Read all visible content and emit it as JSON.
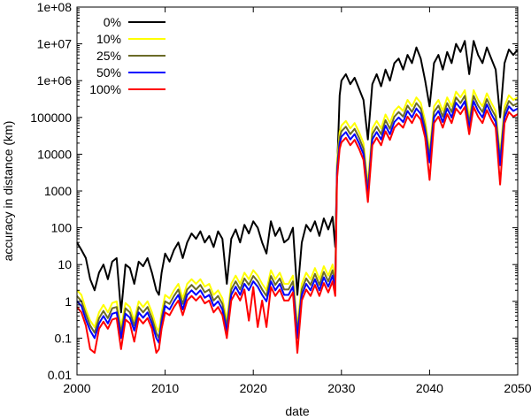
{
  "chart_data": {
    "type": "line",
    "title": "",
    "xlabel": "date",
    "ylabel": "accuracy in distance (km)",
    "xlim": [
      2000,
      2050
    ],
    "ylim": [
      0.01,
      100000000
    ],
    "yscale": "log",
    "xticks": [
      "2000",
      "2010",
      "2020",
      "2030",
      "2040",
      "2050"
    ],
    "yticks": [
      "0.01",
      "0.1",
      "1",
      "10",
      "100",
      "1000",
      "10000",
      "100000",
      "1e+06",
      "1e+07",
      "1e+08"
    ],
    "grid": false,
    "legend_position": "top-left",
    "series": [
      {
        "name": "0%",
        "color": "#000000",
        "x": [
          2000.0,
          2000.5,
          2001.0,
          2001.5,
          2002.0,
          2002.5,
          2003.0,
          2003.5,
          2004.0,
          2004.5,
          2005.0,
          2005.5,
          2006.0,
          2006.5,
          2007.0,
          2007.5,
          2008.0,
          2008.5,
          2009.0,
          2009.3,
          2009.6,
          2010.0,
          2010.5,
          2011.0,
          2011.5,
          2012.0,
          2012.5,
          2013.0,
          2013.5,
          2014.0,
          2014.5,
          2015.0,
          2015.5,
          2016.0,
          2016.5,
          2017.0,
          2017.5,
          2018.0,
          2018.5,
          2019.0,
          2019.5,
          2020.0,
          2020.5,
          2021.0,
          2021.5,
          2022.0,
          2022.5,
          2023.0,
          2023.5,
          2024.0,
          2024.5,
          2025.0,
          2025.5,
          2026.0,
          2026.5,
          2027.0,
          2027.5,
          2028.0,
          2028.5,
          2029.0,
          2029.3,
          2029.5,
          2029.8,
          2030.0,
          2030.5,
          2031.0,
          2031.5,
          2032.0,
          2032.5,
          2033.0,
          2033.5,
          2034.0,
          2034.5,
          2035.0,
          2035.5,
          2036.0,
          2036.5,
          2037.0,
          2037.5,
          2038.0,
          2038.5,
          2039.0,
          2039.5,
          2040.0,
          2040.5,
          2041.0,
          2041.5,
          2042.0,
          2042.5,
          2043.0,
          2043.5,
          2044.0,
          2044.5,
          2045.0,
          2045.5,
          2046.0,
          2046.5,
          2047.0,
          2047.5,
          2048.0,
          2048.5,
          2049.0,
          2049.5,
          2050.0
        ],
        "y": [
          40,
          25,
          15,
          4,
          2,
          6,
          10,
          4,
          12,
          15,
          0.5,
          10,
          8,
          3,
          12,
          9,
          15,
          6,
          2,
          1.5,
          6,
          20,
          12,
          25,
          40,
          15,
          40,
          70,
          50,
          80,
          40,
          60,
          30,
          80,
          50,
          3,
          50,
          90,
          40,
          120,
          70,
          150,
          100,
          40,
          20,
          150,
          60,
          100,
          40,
          50,
          100,
          1.5,
          40,
          120,
          80,
          150,
          60,
          180,
          90,
          200,
          30,
          3000,
          400000,
          1000000,
          1500000,
          800000,
          1200000,
          600000,
          300000,
          25000,
          800000,
          1500000,
          700000,
          2000000,
          1000000,
          3000000,
          4000000,
          2000000,
          5000000,
          3000000,
          8000000,
          4000000,
          1000000,
          200000,
          3000000,
          5000000,
          2000000,
          6000000,
          3000000,
          10000000,
          6000000,
          12000000,
          1500000,
          12000000,
          5000000,
          3000000,
          8000000,
          4000000,
          2000000,
          100000,
          3000000,
          7000000,
          5000000,
          7000000
        ]
      },
      {
        "name": "10%",
        "color": "#ffff00",
        "x": [
          2000.0,
          2000.5,
          2001.0,
          2001.5,
          2002.0,
          2002.5,
          2003.0,
          2003.5,
          2004.0,
          2004.5,
          2005.0,
          2005.5,
          2006.0,
          2006.5,
          2007.0,
          2007.5,
          2008.0,
          2008.5,
          2009.0,
          2009.3,
          2009.6,
          2010.0,
          2010.5,
          2011.0,
          2011.5,
          2012.0,
          2012.5,
          2013.0,
          2013.5,
          2014.0,
          2014.5,
          2015.0,
          2015.5,
          2016.0,
          2016.5,
          2017.0,
          2017.5,
          2018.0,
          2018.5,
          2019.0,
          2019.5,
          2020.0,
          2020.5,
          2021.0,
          2021.5,
          2022.0,
          2022.5,
          2023.0,
          2023.5,
          2024.0,
          2024.5,
          2025.0,
          2025.5,
          2026.0,
          2026.5,
          2027.0,
          2027.5,
          2028.0,
          2028.5,
          2029.0,
          2029.3,
          2029.5,
          2029.8,
          2030.0,
          2030.5,
          2031.0,
          2031.5,
          2032.0,
          2032.5,
          2033.0,
          2033.5,
          2034.0,
          2034.5,
          2035.0,
          2035.5,
          2036.0,
          2036.5,
          2037.0,
          2037.5,
          2038.0,
          2038.5,
          2039.0,
          2039.5,
          2040.0,
          2040.5,
          2041.0,
          2041.5,
          2042.0,
          2042.5,
          2043.0,
          2043.5,
          2044.0,
          2044.5,
          2045.0,
          2045.5,
          2046.0,
          2046.5,
          2047.0,
          2047.5,
          2048.0,
          2048.5,
          2049.0,
          2049.5,
          2050.0
        ],
        "y": [
          2,
          1.5,
          0.6,
          0.3,
          0.2,
          0.5,
          0.8,
          0.5,
          0.9,
          1.0,
          0.2,
          0.9,
          0.7,
          0.3,
          1.0,
          0.7,
          1.0,
          0.5,
          0.2,
          0.15,
          0.5,
          1.5,
          1.2,
          2,
          3,
          1.2,
          3,
          4,
          3,
          4,
          2.5,
          3,
          1.5,
          2,
          1.2,
          0.3,
          3,
          5,
          3,
          6,
          4,
          7,
          5,
          3,
          2,
          7,
          4,
          6,
          3,
          3,
          5,
          0.2,
          3,
          6,
          4,
          8,
          4,
          9,
          5,
          10,
          4,
          6000,
          40000,
          60000,
          80000,
          50000,
          70000,
          40000,
          20000,
          1500,
          50000,
          80000,
          50000,
          120000,
          70000,
          150000,
          200000,
          150000,
          300000,
          200000,
          350000,
          250000,
          80000,
          12000,
          200000,
          300000,
          150000,
          350000,
          200000,
          500000,
          350000,
          550000,
          100000,
          550000,
          300000,
          200000,
          450000,
          250000,
          150000,
          10000,
          200000,
          400000,
          300000,
          350000
        ]
      },
      {
        "name": "25%",
        "color": "#6b6b27",
        "x": [
          2000.0,
          2000.5,
          2001.0,
          2001.5,
          2002.0,
          2002.5,
          2003.0,
          2003.5,
          2004.0,
          2004.5,
          2005.0,
          2005.5,
          2006.0,
          2006.5,
          2007.0,
          2007.5,
          2008.0,
          2008.5,
          2009.0,
          2009.3,
          2009.6,
          2010.0,
          2010.5,
          2011.0,
          2011.5,
          2012.0,
          2012.5,
          2013.0,
          2013.5,
          2014.0,
          2014.5,
          2015.0,
          2015.5,
          2016.0,
          2016.5,
          2017.0,
          2017.5,
          2018.0,
          2018.5,
          2019.0,
          2019.5,
          2020.0,
          2020.5,
          2021.0,
          2021.5,
          2022.0,
          2022.5,
          2023.0,
          2023.5,
          2024.0,
          2024.5,
          2025.0,
          2025.5,
          2026.0,
          2026.5,
          2027.0,
          2027.5,
          2028.0,
          2028.5,
          2029.0,
          2029.3,
          2029.5,
          2029.8,
          2030.0,
          2030.5,
          2031.0,
          2031.5,
          2032.0,
          2032.5,
          2033.0,
          2033.5,
          2034.0,
          2034.5,
          2035.0,
          2035.5,
          2036.0,
          2036.5,
          2037.0,
          2037.5,
          2038.0,
          2038.5,
          2039.0,
          2039.5,
          2040.0,
          2040.5,
          2041.0,
          2041.5,
          2042.0,
          2042.5,
          2043.0,
          2043.5,
          2044.0,
          2044.5,
          2045.0,
          2045.5,
          2046.0,
          2046.5,
          2047.0,
          2047.5,
          2048.0,
          2048.5,
          2049.0,
          2049.5,
          2050.0
        ],
        "y": [
          1.4,
          1.0,
          0.45,
          0.22,
          0.14,
          0.35,
          0.55,
          0.35,
          0.65,
          0.7,
          0.14,
          0.65,
          0.5,
          0.22,
          0.7,
          0.5,
          0.7,
          0.35,
          0.14,
          0.1,
          0.35,
          1.0,
          0.85,
          1.4,
          2.1,
          0.85,
          2.1,
          2.8,
          2.1,
          2.8,
          1.75,
          2.1,
          1.05,
          1.4,
          0.85,
          0.21,
          2.1,
          3.5,
          2.1,
          4.2,
          2.8,
          4.9,
          3.5,
          2.1,
          1.4,
          4.9,
          2.8,
          4.2,
          2.1,
          2.1,
          3.5,
          0.14,
          2.1,
          4.2,
          2.8,
          5.6,
          2.8,
          6.3,
          3.5,
          7,
          2.8,
          4200,
          28000,
          42000,
          56000,
          35000,
          49000,
          28000,
          14000,
          1050,
          35000,
          56000,
          35000,
          84000,
          49000,
          105000,
          140000,
          105000,
          210000,
          140000,
          245000,
          175000,
          56000,
          8400,
          140000,
          210000,
          105000,
          245000,
          140000,
          350000,
          245000,
          385000,
          70000,
          385000,
          210000,
          140000,
          315000,
          175000,
          105000,
          7000,
          140000,
          280000,
          210000,
          245000
        ]
      },
      {
        "name": "50%",
        "color": "#0000ff",
        "x": [
          2000.0,
          2000.5,
          2001.0,
          2001.5,
          2002.0,
          2002.5,
          2003.0,
          2003.5,
          2004.0,
          2004.5,
          2005.0,
          2005.5,
          2006.0,
          2006.5,
          2007.0,
          2007.5,
          2008.0,
          2008.5,
          2009.0,
          2009.3,
          2009.6,
          2010.0,
          2010.5,
          2011.0,
          2011.5,
          2012.0,
          2012.5,
          2013.0,
          2013.5,
          2014.0,
          2014.5,
          2015.0,
          2015.5,
          2016.0,
          2016.5,
          2017.0,
          2017.5,
          2018.0,
          2018.5,
          2019.0,
          2019.5,
          2020.0,
          2020.5,
          2021.0,
          2021.5,
          2022.0,
          2022.5,
          2023.0,
          2023.5,
          2024.0,
          2024.5,
          2025.0,
          2025.5,
          2026.0,
          2026.5,
          2027.0,
          2027.5,
          2028.0,
          2028.5,
          2029.0,
          2029.3,
          2029.5,
          2029.8,
          2030.0,
          2030.5,
          2031.0,
          2031.5,
          2032.0,
          2032.5,
          2033.0,
          2033.5,
          2034.0,
          2034.5,
          2035.0,
          2035.5,
          2036.0,
          2036.5,
          2037.0,
          2037.5,
          2038.0,
          2038.5,
          2039.0,
          2039.5,
          2040.0,
          2040.5,
          2041.0,
          2041.5,
          2042.0,
          2042.5,
          2043.0,
          2043.5,
          2044.0,
          2044.5,
          2045.0,
          2045.5,
          2046.0,
          2046.5,
          2047.0,
          2047.5,
          2048.0,
          2048.5,
          2049.0,
          2049.5,
          2050.0
        ],
        "y": [
          1.0,
          0.75,
          0.32,
          0.16,
          0.1,
          0.25,
          0.4,
          0.25,
          0.46,
          0.5,
          0.1,
          0.46,
          0.36,
          0.16,
          0.5,
          0.36,
          0.5,
          0.25,
          0.1,
          0.075,
          0.25,
          0.75,
          0.6,
          1.0,
          1.5,
          0.6,
          1.5,
          2.0,
          1.5,
          2.0,
          1.25,
          1.5,
          0.75,
          1.0,
          0.6,
          0.15,
          1.5,
          2.5,
          1.5,
          3.0,
          2.0,
          3.5,
          2.5,
          1.5,
          1.0,
          3.5,
          2.0,
          3.0,
          1.5,
          1.5,
          2.5,
          0.1,
          1.5,
          3.0,
          2.0,
          4.0,
          2.0,
          4.5,
          2.5,
          5,
          2.0,
          3000,
          20000,
          30000,
          40000,
          25000,
          35000,
          20000,
          10000,
          750,
          25000,
          40000,
          25000,
          60000,
          35000,
          75000,
          100000,
          75000,
          150000,
          100000,
          175000,
          125000,
          40000,
          6000,
          100000,
          150000,
          75000,
          175000,
          100000,
          250000,
          175000,
          275000,
          50000,
          275000,
          150000,
          100000,
          225000,
          125000,
          75000,
          5000,
          100000,
          200000,
          150000,
          175000
        ]
      },
      {
        "name": "100%",
        "color": "#ff0000",
        "x": [
          2000.0,
          2000.5,
          2001.0,
          2001.5,
          2002.0,
          2002.5,
          2003.0,
          2003.5,
          2004.0,
          2004.5,
          2005.0,
          2005.5,
          2006.0,
          2006.5,
          2007.0,
          2007.5,
          2008.0,
          2008.5,
          2009.0,
          2009.3,
          2009.6,
          2010.0,
          2010.5,
          2011.0,
          2011.5,
          2012.0,
          2012.5,
          2013.0,
          2013.5,
          2014.0,
          2014.5,
          2015.0,
          2015.5,
          2016.0,
          2016.5,
          2017.0,
          2017.5,
          2018.0,
          2018.5,
          2019.0,
          2019.5,
          2020.0,
          2020.5,
          2021.0,
          2021.5,
          2022.0,
          2022.5,
          2023.0,
          2023.5,
          2024.0,
          2024.5,
          2025.0,
          2025.5,
          2026.0,
          2026.5,
          2027.0,
          2027.5,
          2028.0,
          2028.5,
          2029.0,
          2029.3,
          2029.5,
          2029.8,
          2030.0,
          2030.5,
          2031.0,
          2031.5,
          2032.0,
          2032.5,
          2033.0,
          2033.5,
          2034.0,
          2034.5,
          2035.0,
          2035.5,
          2036.0,
          2036.5,
          2037.0,
          2037.5,
          2038.0,
          2038.5,
          2039.0,
          2039.5,
          2040.0,
          2040.5,
          2041.0,
          2041.5,
          2042.0,
          2042.5,
          2043.0,
          2043.5,
          2044.0,
          2044.5,
          2045.0,
          2045.5,
          2046.0,
          2046.5,
          2047.0,
          2047.5,
          2048.0,
          2048.5,
          2049.0,
          2049.5,
          2050.0
        ],
        "y": [
          0.7,
          0.5,
          0.22,
          0.05,
          0.04,
          0.18,
          0.28,
          0.18,
          0.32,
          0.35,
          0.05,
          0.32,
          0.25,
          0.08,
          0.35,
          0.25,
          0.35,
          0.18,
          0.04,
          0.05,
          0.18,
          0.5,
          0.42,
          0.7,
          1.05,
          0.42,
          1.05,
          1.4,
          1.05,
          1.4,
          0.88,
          1.05,
          0.5,
          0.7,
          0.42,
          0.1,
          1.05,
          1.75,
          1.05,
          2.1,
          0.3,
          2.45,
          0.2,
          1.05,
          0.2,
          2.45,
          1.4,
          2.1,
          1.05,
          1.05,
          1.75,
          0.04,
          1.05,
          2.1,
          1.4,
          2.8,
          1.4,
          3.15,
          1.75,
          3.5,
          1.4,
          2100,
          14000,
          21000,
          28000,
          17500,
          24500,
          14000,
          7000,
          500,
          17500,
          28000,
          17500,
          42000,
          24500,
          52500,
          70000,
          52500,
          105000,
          70000,
          122500,
          87500,
          28000,
          2000,
          70000,
          105000,
          52500,
          122500,
          70000,
          175000,
          122500,
          192500,
          35000,
          192500,
          105000,
          70000,
          157500,
          87500,
          52500,
          1500,
          70000,
          140000,
          105000,
          122500
        ]
      }
    ]
  }
}
